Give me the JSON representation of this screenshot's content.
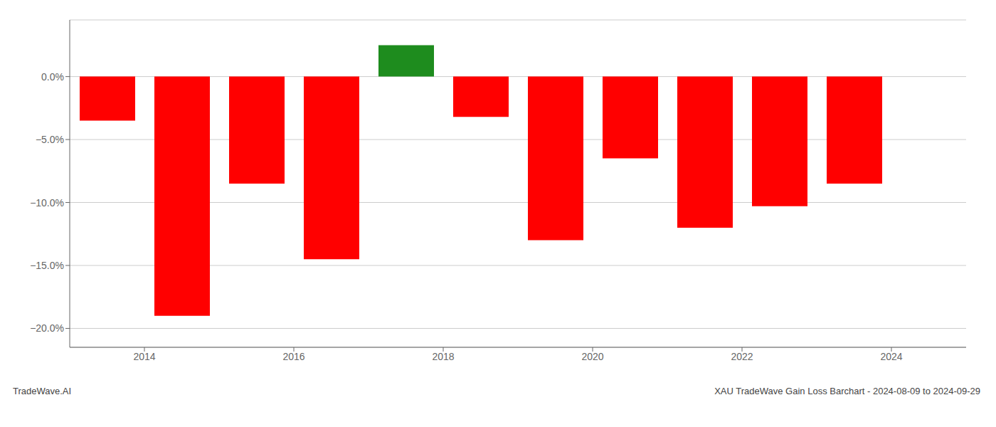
{
  "chart_data": {
    "type": "bar",
    "x": [
      2013.5,
      2014.5,
      2015.5,
      2016.5,
      2017.5,
      2018.5,
      2019.5,
      2020.5,
      2021.5,
      2022.5,
      2023.5
    ],
    "values": [
      -3.5,
      -19.0,
      -8.5,
      -14.5,
      2.5,
      -3.2,
      -13.0,
      -6.5,
      -12.0,
      -10.3,
      -8.5
    ],
    "colors": [
      "#ff0000",
      "#ff0000",
      "#ff0000",
      "#ff0000",
      "#1e8c1e",
      "#ff0000",
      "#ff0000",
      "#ff0000",
      "#ff0000",
      "#ff0000",
      "#ff0000"
    ],
    "xlim": [
      2013.0,
      2025.0
    ],
    "xticks": [
      2014,
      2016,
      2018,
      2020,
      2022,
      2024
    ],
    "ylim": [
      -21.5,
      4.5
    ],
    "yticks": [
      {
        "value": 0.0,
        "label": "0.0%"
      },
      {
        "value": -5.0,
        "label": "−5.0%"
      },
      {
        "value": -10.0,
        "label": "−10.0%"
      },
      {
        "value": -15.0,
        "label": "−15.0%"
      },
      {
        "value": -20.0,
        "label": "−20.0%"
      }
    ],
    "grid": true,
    "annotations": [
      "TradeWave.AI",
      "XAU TradeWave Gain Loss Barchart - 2024-08-09 to 2024-09-29"
    ]
  }
}
